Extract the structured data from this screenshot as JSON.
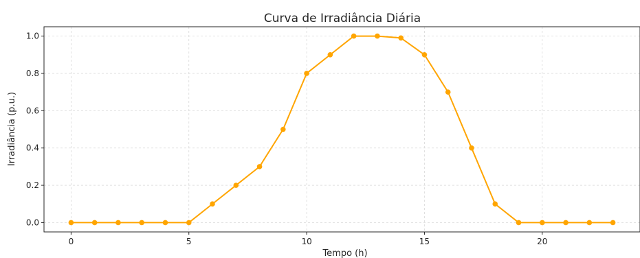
{
  "chart_data": {
    "type": "line",
    "title": "Curva de Irradiância Diária",
    "xlabel": "Tempo (h)",
    "ylabel": "Irradiância (p.u.)",
    "x": [
      0,
      1,
      2,
      3,
      4,
      5,
      6,
      7,
      8,
      9,
      10,
      11,
      12,
      13,
      14,
      15,
      16,
      17,
      18,
      19,
      20,
      21,
      22,
      23
    ],
    "series": [
      {
        "values": [
          0,
          0,
          0,
          0,
          0,
          0,
          0.1,
          0.2,
          0.3,
          0.5,
          0.8,
          0.9,
          1.0,
          1.0,
          0.99,
          0.9,
          0.7,
          0.4,
          0.1,
          0,
          0,
          0,
          0,
          0
        ],
        "color": "#FFA500",
        "marker": "circle"
      }
    ],
    "xlim": [
      -1.15,
      24.15
    ],
    "ylim": [
      -0.05,
      1.05
    ],
    "xticks": [
      0,
      5,
      10,
      15,
      20
    ],
    "xtick_labels": [
      "0",
      "5",
      "10",
      "15",
      "20"
    ],
    "yticks": [
      0.0,
      0.2,
      0.4,
      0.6,
      0.8,
      1.0
    ],
    "ytick_labels": [
      "0.0",
      "0.2",
      "0.4",
      "0.6",
      "0.8",
      "1.0"
    ],
    "grid": true,
    "legend": "none"
  }
}
